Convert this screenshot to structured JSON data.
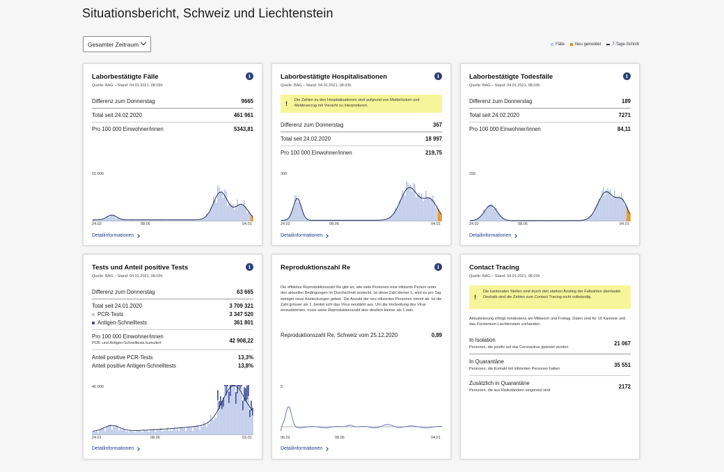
{
  "page": {
    "title": "Situationsbericht, Schweiz und Liechtenstein"
  },
  "filter": {
    "period": "Gesamter Zeitraum"
  },
  "legend": [
    {
      "label": "Fälle",
      "color": "#bdc9e9"
    },
    {
      "label": "Neu gemeldet",
      "color": "#e08e1f"
    },
    {
      "label": "7-Tage-Schnitt",
      "color": "#1f2d55"
    }
  ],
  "detail_label": "Detailinformationen",
  "cards": {
    "cases": {
      "title": "Laborbestätigte Fälle",
      "source": "Quelle: BAG – Stand: 04.01.2021, 08.03h",
      "rows": [
        {
          "label": "Differenz zum Donnerstag",
          "value": "9665"
        },
        {
          "label": "Total seit 24.02.2020",
          "value": "461 961"
        },
        {
          "label": "Pro 100 000 Einwohner/innen",
          "value": "5343,81"
        }
      ],
      "ymax": "15 000",
      "xlabels": [
        "24.02",
        "08.06",
        "04.01"
      ]
    },
    "hosp": {
      "title": "Laborbestätigte Hospitalisationen",
      "source": "Quelle: BAG – Stand: 04.01.2021, 08.03h",
      "warning": "Die Zahlen zu den Hospitalisationen sind aufgrund von Meldelücken und Meldeverzug mit Vorsicht zu interpretieren.",
      "rows": [
        {
          "label": "Differenz zum Donnerstag",
          "value": "367"
        },
        {
          "label": "Total seit 24.02.2020",
          "value": "18 997"
        },
        {
          "label": "Pro 100 000 Einwohner/innen",
          "value": "219,75"
        }
      ],
      "ymax": "300",
      "xlabels": [
        "24.02",
        "08.06",
        "04.01"
      ]
    },
    "deaths": {
      "title": "Laborbestätigte Todesfälle",
      "source": "Quelle: BAG – Stand: 04.01.2021, 08.03h",
      "rows": [
        {
          "label": "Differenz zum Donnerstag",
          "value": "189"
        },
        {
          "label": "Total seit 24.02.2020",
          "value": "7271"
        },
        {
          "label": "Pro 100 000 Einwohner/innen",
          "value": "84,11"
        }
      ],
      "ymax": "150",
      "xlabels": [
        "24.02",
        "08.06",
        "04.01"
      ]
    },
    "tests": {
      "title": "Tests und Anteil positive Tests",
      "source": "Quelle: BAG – Stand: 04.01.2021, 08.03h",
      "diff_label": "Differenz zum Donnerstag",
      "diff_value": "63 665",
      "total_label": "Total seit 24.01.2020",
      "total_value": "3 709 321",
      "pcr_label": "PCR-Tests",
      "pcr_value": "3 347 520",
      "pcr_color": "#bdc9e9",
      "antigen_label": "Antigen-Schnelltests",
      "antigen_value": "361 801",
      "antigen_color": "#3f4f99",
      "per100k_label": "Pro 100 000 Einwohner/innen",
      "per100k_sub": "PCR- und Antigen-Schnelltests kumuliert",
      "per100k_value": "42 908,22",
      "pos_pcr_label": "Anteil positive PCR-Tests",
      "pos_pcr_value": "13,3%",
      "pos_ag_label": "Anteil positive Antigen-Schnelltests",
      "pos_ag_value": "13,8%",
      "ymax": "40 000",
      "xlabels": [
        "24.01",
        "08.06",
        "03.01"
      ]
    },
    "repro": {
      "title": "Reproduktionszahl Re",
      "text": "Die effektive Reproduktionszahl Re gibt an, wie viele Personen eine infizierte Person unter den aktuellen Bedingungen im Durchschnitt ansteckt. Ist diese Zahl kleiner 1, wird es pro Tag weniger neue Ansteckungen geben. Die Anzahl der neu infizierten Personen nimmt ab. Ist die Zahl grösser als 1, breitet sich das Virus verstärkt aus. Um die Verbreitung des Virus einzudämmen, muss seine Reproduktionszahl also deutlich kleiner als 1 sein.",
      "row_label": "Reproduktionszahl Re, Schweiz vom 25.12.2020",
      "row_value": "0,89",
      "ymax": "5",
      "xlabels": [
        "06.02",
        "08.06",
        "04.01"
      ]
    },
    "tracing": {
      "title": "Contact Tracing",
      "source": "Quelle: BAG – Stand: 04.01.2021, 08.03h",
      "warning": "Die kantonalen Stellen sind durch den starken Anstieg der Fallzahlen überlastet. Deshalb sind die Zahlen zum Contact Tracing nicht vollständig.",
      "update": "Aktualisierung erfolgt mindestens am Mittwoch und Freitag. Daten sind für 16 Kantone und das Fürstentum Liechtenstein vorhanden.",
      "rows": [
        {
          "label": "In Isolation",
          "sub": "Personen, die positiv auf das Coronavirus getestet wurden",
          "value": "21 067"
        },
        {
          "label": "In Quarantäne",
          "sub": "Personen, die Kontakt mit infizierten Personen hatten",
          "value": "35 551"
        },
        {
          "label": "Zusätzlich in Quarantäne",
          "sub": "Personen, die aus Risikoländern eingereist sind",
          "value": "2172"
        }
      ]
    }
  }
}
